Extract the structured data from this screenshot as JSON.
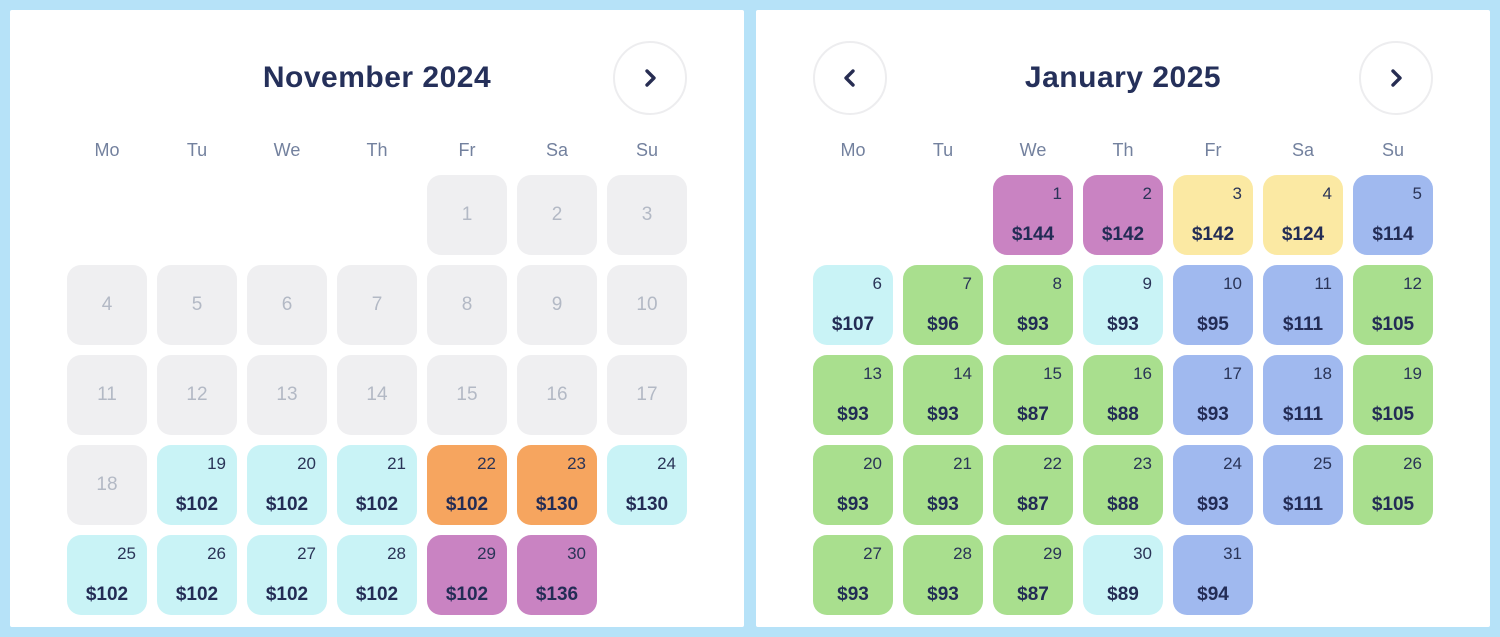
{
  "page": {
    "background_color": "#B6E2F8",
    "panel_background": "#FFFFFF"
  },
  "colors": {
    "disabled": "#EFEFF1",
    "cyan": "#C9F3F6",
    "orange": "#F6A55F",
    "purple": "#C983C2",
    "green": "#A9DF8E",
    "blue": "#A0B9EF",
    "yellow": "#FBE9A3",
    "title_text": "#25305A",
    "day_text": "#2A3457",
    "price_text": "#232C55",
    "disabled_text": "#B3B9C5",
    "weekday_text": "#73819E"
  },
  "icons": {
    "prev": "chevron-left-icon",
    "next": "chevron-right-icon"
  },
  "weekdays": [
    "Mo",
    "Tu",
    "We",
    "Th",
    "Fr",
    "Sa",
    "Su"
  ],
  "calendars": [
    {
      "title": "November 2024",
      "nav": {
        "prev": false,
        "next": true
      },
      "weeks": [
        [
          {
            "variant": "empty"
          },
          {
            "variant": "empty"
          },
          {
            "variant": "empty"
          },
          {
            "variant": "empty"
          },
          {
            "day": "1",
            "variant": "disabled"
          },
          {
            "day": "2",
            "variant": "disabled"
          },
          {
            "day": "3",
            "variant": "disabled"
          }
        ],
        [
          {
            "day": "4",
            "variant": "disabled"
          },
          {
            "day": "5",
            "variant": "disabled"
          },
          {
            "day": "6",
            "variant": "disabled"
          },
          {
            "day": "7",
            "variant": "disabled"
          },
          {
            "day": "8",
            "variant": "disabled"
          },
          {
            "day": "9",
            "variant": "disabled"
          },
          {
            "day": "10",
            "variant": "disabled"
          }
        ],
        [
          {
            "day": "11",
            "variant": "disabled"
          },
          {
            "day": "12",
            "variant": "disabled"
          },
          {
            "day": "13",
            "variant": "disabled"
          },
          {
            "day": "14",
            "variant": "disabled"
          },
          {
            "day": "15",
            "variant": "disabled"
          },
          {
            "day": "16",
            "variant": "disabled"
          },
          {
            "day": "17",
            "variant": "disabled"
          }
        ],
        [
          {
            "day": "18",
            "variant": "disabled"
          },
          {
            "day": "19",
            "price": "$102",
            "variant": "cyan"
          },
          {
            "day": "20",
            "price": "$102",
            "variant": "cyan"
          },
          {
            "day": "21",
            "price": "$102",
            "variant": "cyan"
          },
          {
            "day": "22",
            "price": "$102",
            "variant": "orange"
          },
          {
            "day": "23",
            "price": "$130",
            "variant": "orange"
          },
          {
            "day": "24",
            "price": "$130",
            "variant": "cyan"
          }
        ],
        [
          {
            "day": "25",
            "price": "$102",
            "variant": "cyan"
          },
          {
            "day": "26",
            "price": "$102",
            "variant": "cyan"
          },
          {
            "day": "27",
            "price": "$102",
            "variant": "cyan"
          },
          {
            "day": "28",
            "price": "$102",
            "variant": "cyan"
          },
          {
            "day": "29",
            "price": "$102",
            "variant": "purple"
          },
          {
            "day": "30",
            "price": "$136",
            "variant": "purple"
          },
          {
            "variant": "empty"
          }
        ]
      ]
    },
    {
      "title": "January 2025",
      "nav": {
        "prev": true,
        "next": true
      },
      "weeks": [
        [
          {
            "variant": "empty"
          },
          {
            "variant": "empty"
          },
          {
            "day": "1",
            "price": "$144",
            "variant": "purple"
          },
          {
            "day": "2",
            "price": "$142",
            "variant": "purple"
          },
          {
            "day": "3",
            "price": "$142",
            "variant": "yellow"
          },
          {
            "day": "4",
            "price": "$124",
            "variant": "yellow"
          },
          {
            "day": "5",
            "price": "$114",
            "variant": "blue"
          }
        ],
        [
          {
            "day": "6",
            "price": "$107",
            "variant": "cyan"
          },
          {
            "day": "7",
            "price": "$96",
            "variant": "green"
          },
          {
            "day": "8",
            "price": "$93",
            "variant": "green"
          },
          {
            "day": "9",
            "price": "$93",
            "variant": "cyan"
          },
          {
            "day": "10",
            "price": "$95",
            "variant": "blue"
          },
          {
            "day": "11",
            "price": "$111",
            "variant": "blue"
          },
          {
            "day": "12",
            "price": "$105",
            "variant": "green"
          }
        ],
        [
          {
            "day": "13",
            "price": "$93",
            "variant": "green"
          },
          {
            "day": "14",
            "price": "$93",
            "variant": "green"
          },
          {
            "day": "15",
            "price": "$87",
            "variant": "green"
          },
          {
            "day": "16",
            "price": "$88",
            "variant": "green"
          },
          {
            "day": "17",
            "price": "$93",
            "variant": "blue"
          },
          {
            "day": "18",
            "price": "$111",
            "variant": "blue"
          },
          {
            "day": "19",
            "price": "$105",
            "variant": "green"
          }
        ],
        [
          {
            "day": "20",
            "price": "$93",
            "variant": "green"
          },
          {
            "day": "21",
            "price": "$93",
            "variant": "green"
          },
          {
            "day": "22",
            "price": "$87",
            "variant": "green"
          },
          {
            "day": "23",
            "price": "$88",
            "variant": "green"
          },
          {
            "day": "24",
            "price": "$93",
            "variant": "blue"
          },
          {
            "day": "25",
            "price": "$111",
            "variant": "blue"
          },
          {
            "day": "26",
            "price": "$105",
            "variant": "green"
          }
        ],
        [
          {
            "day": "27",
            "price": "$93",
            "variant": "green"
          },
          {
            "day": "28",
            "price": "$93",
            "variant": "green"
          },
          {
            "day": "29",
            "price": "$87",
            "variant": "green"
          },
          {
            "day": "30",
            "price": "$89",
            "variant": "cyan"
          },
          {
            "day": "31",
            "price": "$94",
            "variant": "blue"
          },
          {
            "variant": "empty"
          },
          {
            "variant": "empty"
          }
        ]
      ]
    }
  ]
}
